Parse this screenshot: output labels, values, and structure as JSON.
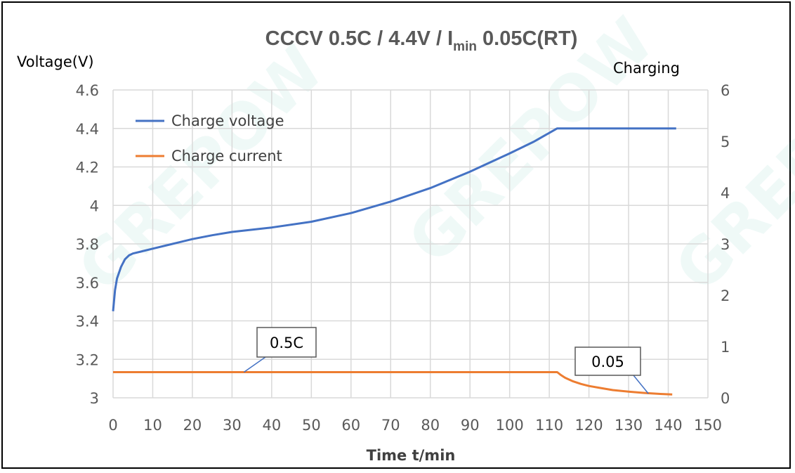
{
  "chart_data": {
    "type": "line",
    "title": "CCCV 0.5C  / 4.4V  /  I",
    "title_sub": "min",
    "title_end": " 0.05C(RT)",
    "xlabel": "Time t/min",
    "ylabel_left": "Voltage(V)",
    "ylabel_right": "Charging",
    "xlim": [
      0,
      150
    ],
    "ylim_left": [
      3,
      4.6
    ],
    "ylim_right": [
      0,
      6
    ],
    "x_ticks": [
      "0",
      "10",
      "20",
      "30",
      "40",
      "50",
      "60",
      "70",
      "80",
      "90",
      "100",
      "110",
      "120",
      "130",
      "140",
      "150"
    ],
    "y_left_ticks": [
      "3",
      "3.2",
      "3.4",
      "3.6",
      "3.8",
      "4",
      "4.2",
      "4.4",
      "4.6"
    ],
    "y_right_ticks": [
      "0",
      "1",
      "2",
      "3",
      "4",
      "5",
      "6"
    ],
    "grid": true,
    "legend_position": "top-left",
    "series": [
      {
        "name": "Charge voltage",
        "axis": "left",
        "color": "#4472c4",
        "x": [
          0,
          0.5,
          1,
          2,
          3,
          4,
          5,
          7,
          10,
          15,
          20,
          25,
          30,
          40,
          50,
          60,
          70,
          80,
          90,
          100,
          106,
          112,
          142
        ],
        "y": [
          3.45,
          3.56,
          3.62,
          3.68,
          3.72,
          3.74,
          3.75,
          3.76,
          3.775,
          3.8,
          3.825,
          3.845,
          3.862,
          3.885,
          3.915,
          3.96,
          4.02,
          4.09,
          4.175,
          4.27,
          4.33,
          4.4,
          4.4
        ]
      },
      {
        "name": "Charge current",
        "axis": "right",
        "color": "#ed7d31",
        "x": [
          0,
          112,
          113,
          114,
          116,
          118,
          120,
          123,
          126,
          130,
          134,
          138,
          141
        ],
        "y": [
          0.5,
          0.5,
          0.44,
          0.39,
          0.32,
          0.27,
          0.23,
          0.19,
          0.15,
          0.12,
          0.095,
          0.075,
          0.065
        ]
      }
    ],
    "annotations": [
      {
        "text": "0.5C",
        "x": 33,
        "y": 0.5
      },
      {
        "text": "0.05",
        "x": 135,
        "y": 0.08
      }
    ]
  },
  "watermark": "GREPOW RECHARGEABLE BATTERY"
}
